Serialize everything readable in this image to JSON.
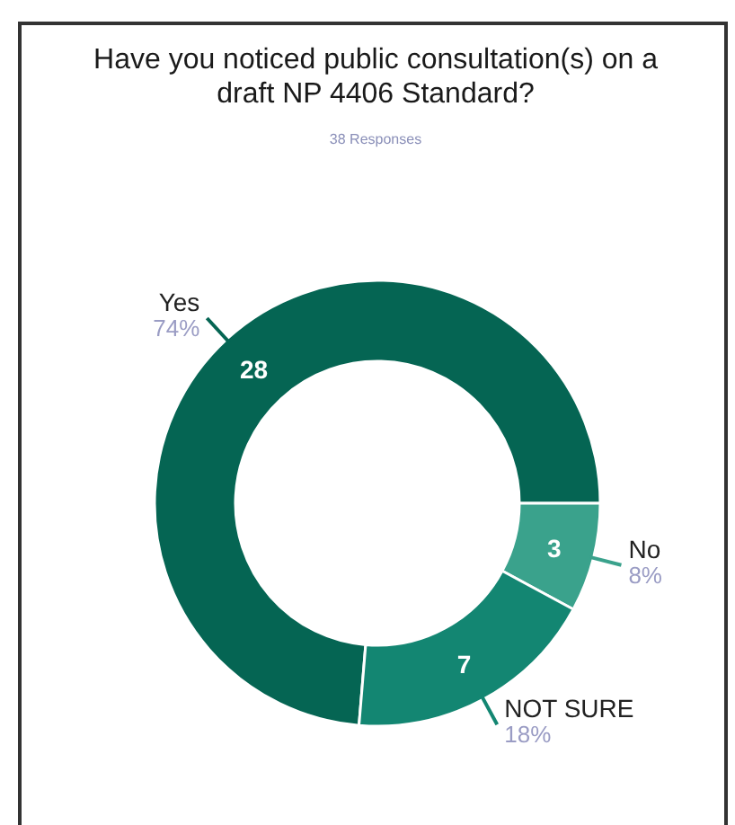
{
  "chart_data": {
    "type": "donut",
    "title": "Have you noticed public consultation(s) on a draft NP 4406 Standard?",
    "subtitle": "38 Responses",
    "categories": [
      "Yes",
      "No",
      "NOT SURE"
    ],
    "values": [
      28,
      3,
      7
    ],
    "colors": [
      "#056553",
      "#3aa28c",
      "#138672"
    ],
    "data_labels": true,
    "annotations": [
      "74%",
      "8%",
      "18%"
    ]
  }
}
